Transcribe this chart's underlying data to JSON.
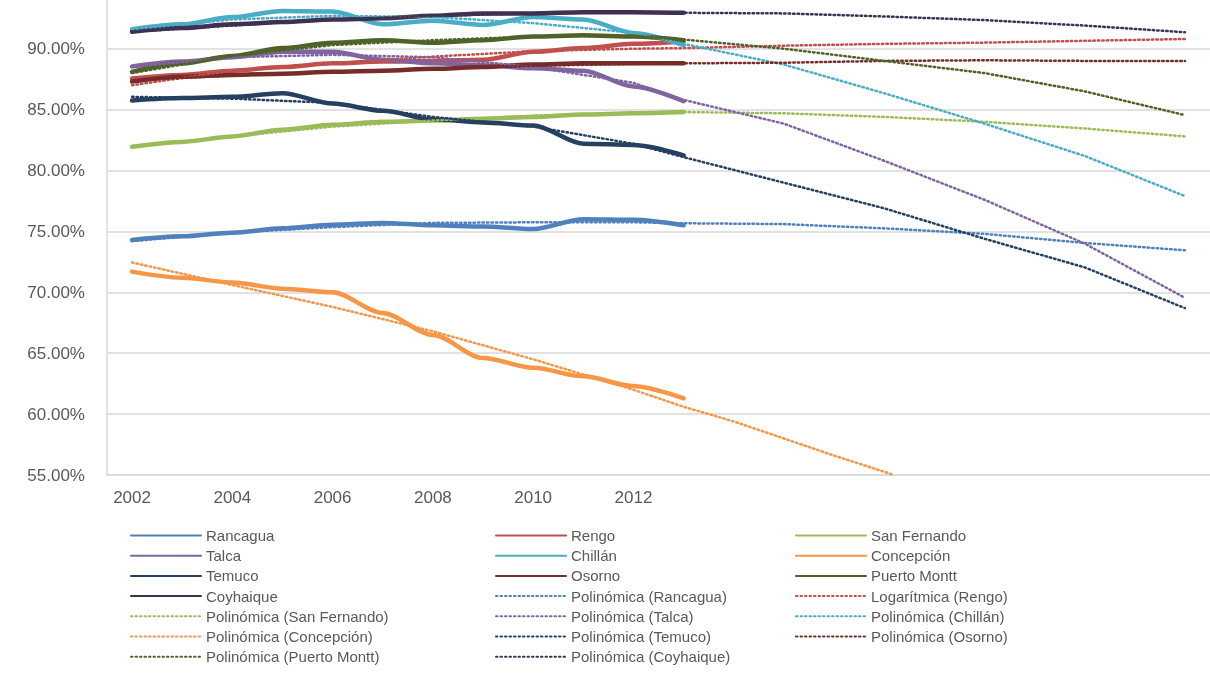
{
  "chart_data": {
    "type": "line",
    "x": [
      2002,
      2003,
      2004,
      2005,
      2006,
      2007,
      2008,
      2009,
      2010,
      2011,
      2012,
      2013
    ],
    "xlim": [
      2001.5,
      2023.5
    ],
    "xticks": [
      2002,
      2004,
      2006,
      2008,
      2010,
      2012
    ],
    "ylim": [
      55,
      94
    ],
    "yticks": [
      {
        "value": 55,
        "label": "55.00%"
      },
      {
        "value": 60,
        "label": "60.00%"
      },
      {
        "value": 65,
        "label": "65.00%"
      },
      {
        "value": 70,
        "label": "70.00%"
      },
      {
        "value": 75,
        "label": "75.00%"
      },
      {
        "value": 80,
        "label": "80.00%"
      },
      {
        "value": 85,
        "label": "85.00%"
      },
      {
        "value": 90,
        "label": "90.00%"
      }
    ],
    "grid": "y",
    "legend": "bottom",
    "marker": "none",
    "line_style": "solid",
    "series": [
      {
        "name": "Rancagua",
        "color": "#4f81bd",
        "values": [
          74.3,
          74.6,
          74.9,
          75.25,
          75.55,
          75.7,
          75.5,
          75.4,
          75.2,
          76.0,
          75.95,
          75.5
        ]
      },
      {
        "name": "Rengo",
        "color": "#c0504d",
        "values": [
          87.55,
          87.85,
          88.2,
          88.5,
          88.8,
          88.95,
          89.0,
          89.1,
          89.75,
          90.05,
          90.4,
          90.6
        ]
      },
      {
        "name": "San Fernando",
        "color": "#9bbb59",
        "values": [
          81.95,
          82.35,
          82.8,
          83.35,
          83.75,
          84.0,
          84.1,
          84.25,
          84.4,
          84.6,
          84.7,
          84.8
        ]
      },
      {
        "name": "Talca",
        "color": "#8064a2",
        "values": [
          88.55,
          88.95,
          89.3,
          89.75,
          89.75,
          89.1,
          88.8,
          88.65,
          88.4,
          88.2,
          86.9,
          85.7
        ]
      },
      {
        "name": "Chillán",
        "color": "#4bacc6",
        "values": [
          91.6,
          92.0,
          92.6,
          93.1,
          93.05,
          92.0,
          92.3,
          91.95,
          92.6,
          92.4,
          91.3,
          90.3
        ]
      },
      {
        "name": "Concepción",
        "color": "#f79646",
        "values": [
          71.7,
          71.2,
          70.8,
          70.3,
          70.0,
          68.3,
          66.5,
          64.6,
          63.8,
          63.1,
          62.3,
          61.3
        ]
      },
      {
        "name": "Temuco",
        "color": "#254061",
        "values": [
          85.75,
          85.95,
          86.05,
          86.35,
          85.5,
          84.9,
          84.2,
          83.95,
          83.7,
          82.2,
          82.1,
          81.25
        ]
      },
      {
        "name": "Osorno",
        "color": "#772c2a",
        "values": [
          87.3,
          87.7,
          87.85,
          87.95,
          88.1,
          88.2,
          88.35,
          88.5,
          88.7,
          88.8,
          88.8,
          88.8
        ]
      },
      {
        "name": "Puerto Montt",
        "color": "#4f6228",
        "values": [
          88.1,
          88.8,
          89.4,
          90.05,
          90.5,
          90.7,
          90.5,
          90.7,
          91.0,
          91.1,
          91.0,
          90.7
        ]
      },
      {
        "name": "Coyhaique",
        "color": "#3f3151",
        "values": [
          91.4,
          91.7,
          92.0,
          92.2,
          92.4,
          92.5,
          92.7,
          92.9,
          92.9,
          93.0,
          93.0,
          92.95
        ]
      },
      {
        "name": "Polinómica (Rancagua)",
        "color": "#4f81bd",
        "line_style": "dotted",
        "x": [
          2002,
          2004,
          2006,
          2008,
          2010,
          2012,
          2013,
          2015,
          2017,
          2019,
          2021,
          2023
        ],
        "values": [
          74.2,
          74.9,
          75.35,
          75.7,
          75.75,
          75.75,
          75.67,
          75.6,
          75.25,
          74.8,
          74.05,
          73.45
        ]
      },
      {
        "name": "Logarítmica (Rengo)",
        "color": "#c0504d",
        "line_style": "dotted",
        "x": [
          2002,
          2004,
          2006,
          2008,
          2010,
          2012,
          2013,
          2015,
          2017,
          2019,
          2021,
          2023
        ],
        "values": [
          87.0,
          88.2,
          88.8,
          89.35,
          89.8,
          90.0,
          90.05,
          90.25,
          90.4,
          90.5,
          90.65,
          90.8
        ]
      },
      {
        "name": "Polinómica (San Fernando)",
        "color": "#9bbb59",
        "line_style": "dotted",
        "x": [
          2002,
          2004,
          2006,
          2008,
          2010,
          2012,
          2013,
          2015,
          2017,
          2019,
          2021,
          2023
        ],
        "values": [
          82.0,
          82.8,
          83.6,
          84.1,
          84.5,
          84.75,
          84.8,
          84.7,
          84.4,
          84.0,
          83.45,
          82.8
        ]
      },
      {
        "name": "Polinómica (Talca)",
        "color": "#8064a2",
        "line_style": "dotted",
        "x": [
          2002,
          2004,
          2006,
          2008,
          2010,
          2012,
          2013,
          2015,
          2017,
          2019,
          2021,
          2023
        ],
        "values": [
          88.5,
          89.3,
          89.5,
          89.3,
          88.5,
          87.2,
          85.8,
          83.85,
          80.8,
          77.6,
          74.0,
          69.55
        ]
      },
      {
        "name": "Polinómica (Chillán)",
        "color": "#4bacc6",
        "line_style": "dotted",
        "x": [
          2002,
          2004,
          2006,
          2008,
          2010,
          2012,
          2013,
          2015,
          2017,
          2019,
          2021,
          2023
        ],
        "values": [
          91.6,
          92.4,
          92.7,
          92.6,
          92.1,
          91.3,
          90.4,
          88.7,
          86.35,
          83.85,
          81.2,
          77.9
        ]
      },
      {
        "name": "Polinómica (Concepción)",
        "color": "#f79646",
        "line_style": "dotted",
        "x": [
          2002,
          2004,
          2006,
          2008,
          2010,
          2012,
          2013,
          2014,
          2015,
          2016,
          2017.2
        ],
        "values": [
          72.45,
          70.6,
          68.8,
          66.8,
          64.5,
          62.0,
          60.6,
          59.4,
          58.0,
          56.6,
          55.0
        ]
      },
      {
        "name": "Polinómica (Temuco)",
        "color": "#254061",
        "line_style": "dotted",
        "x": [
          2002,
          2004,
          2006,
          2008,
          2010,
          2012,
          2013,
          2015,
          2017,
          2019,
          2021,
          2023
        ],
        "values": [
          86.05,
          85.9,
          85.55,
          84.4,
          83.6,
          82.2,
          81.1,
          79.0,
          76.9,
          74.4,
          72.05,
          68.7
        ]
      },
      {
        "name": "Polinómica (Osorno)",
        "color": "#772c2a",
        "line_style": "dotted",
        "x": [
          2002,
          2004,
          2006,
          2008,
          2010,
          2012,
          2013,
          2015,
          2017,
          2019,
          2021,
          2023
        ],
        "values": [
          87.4,
          87.8,
          88.1,
          88.35,
          88.6,
          88.75,
          88.8,
          88.85,
          89.0,
          89.05,
          89.0,
          89.0
        ]
      },
      {
        "name": "Polinómica (Puerto Montt)",
        "color": "#4f6228",
        "line_style": "dotted",
        "x": [
          2002,
          2004,
          2006,
          2008,
          2010,
          2012,
          2013,
          2015,
          2017,
          2019,
          2021,
          2023
        ],
        "values": [
          88.0,
          89.4,
          90.3,
          90.7,
          91.0,
          91.05,
          90.75,
          90.0,
          89.0,
          88.0,
          86.5,
          84.55
        ]
      },
      {
        "name": "Polinómica (Coyhaique)",
        "color": "#3f3151",
        "line_style": "dotted",
        "x": [
          2002,
          2004,
          2006,
          2008,
          2010,
          2012,
          2013,
          2015,
          2017,
          2019,
          2021,
          2023
        ],
        "values": [
          91.4,
          91.9,
          92.4,
          92.7,
          92.9,
          93.0,
          92.95,
          92.9,
          92.65,
          92.35,
          91.9,
          91.35
        ]
      }
    ]
  }
}
